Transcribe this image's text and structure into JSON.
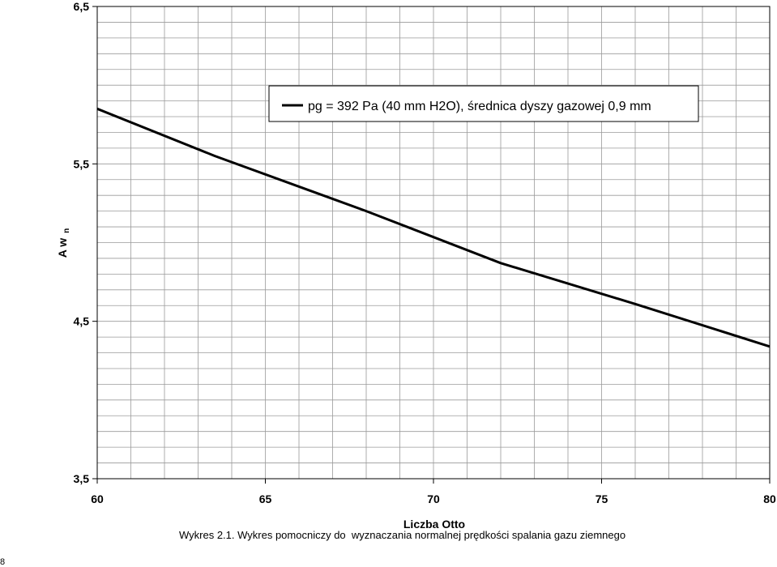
{
  "chart_data": {
    "type": "line",
    "xlabel": "Liczba Otto",
    "ylabel": "A w",
    "ylabel_sub": "n",
    "xlim": [
      60,
      80
    ],
    "ylim": [
      3.5,
      6.5
    ],
    "x_ticks": [
      "60",
      "65",
      "70",
      "75",
      "80"
    ],
    "x_tick_values": [
      60,
      65,
      70,
      75,
      80
    ],
    "y_ticks": [
      "6,5",
      "5,5",
      "4,5",
      "3,5"
    ],
    "y_tick_values": [
      6.5,
      5.5,
      4.5,
      3.5
    ],
    "grid": true,
    "legend_position": "top-right",
    "series": [
      {
        "name": "pg = 392 Pa (40 mm H2O),  średnica dyszy gazowej 0,9 mm",
        "color": "#000000",
        "x": [
          60,
          63.5,
          68,
          72,
          76,
          80
        ],
        "y": [
          5.85,
          5.55,
          5.2,
          4.87,
          4.61,
          4.34
        ]
      }
    ]
  },
  "caption": "Wykres 2.1. Wykres pomocniczy do  wyznaczania normalnej prędkości spalania gazu ziemnego",
  "page_number": "8"
}
